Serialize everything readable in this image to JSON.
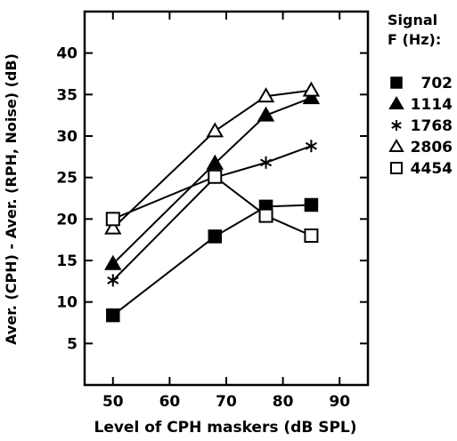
{
  "chart_data": {
    "type": "line",
    "title": "",
    "xlabel": "Level of CPH maskers (dB SPL)",
    "ylabel": "Aver. (CPH) - Aver. (RPH, Noise) (dB)",
    "xlim": [
      45,
      95
    ],
    "ylim": [
      0,
      45
    ],
    "xticks": [
      50,
      60,
      70,
      80,
      90
    ],
    "yticks": [
      5,
      10,
      15,
      20,
      25,
      30,
      35,
      40
    ],
    "grid": false,
    "legend_title_line1": "Signal",
    "legend_title_line2": "F (Hz):",
    "legend_position": "right, outside plot",
    "series": [
      {
        "name": "702",
        "marker": "filled-square",
        "x": [
          50,
          68,
          77,
          85
        ],
        "y": [
          8.4,
          17.9,
          21.5,
          21.7
        ]
      },
      {
        "name": "1114",
        "marker": "filled-triangle",
        "x": [
          50,
          68,
          77,
          85
        ],
        "y": [
          14.6,
          26.7,
          32.5,
          34.6
        ]
      },
      {
        "name": "1768",
        "marker": "asterisk",
        "x": [
          50,
          68,
          77,
          85
        ],
        "y": [
          12.6,
          25.0,
          26.8,
          28.8
        ]
      },
      {
        "name": "2806",
        "marker": "open-triangle",
        "x": [
          50,
          68,
          77,
          85
        ],
        "y": [
          18.9,
          30.6,
          34.8,
          35.5
        ]
      },
      {
        "name": "4454",
        "marker": "open-square",
        "x": [
          50,
          68,
          77,
          85
        ],
        "y": [
          20.0,
          25.1,
          20.4,
          18.0
        ]
      }
    ]
  }
}
